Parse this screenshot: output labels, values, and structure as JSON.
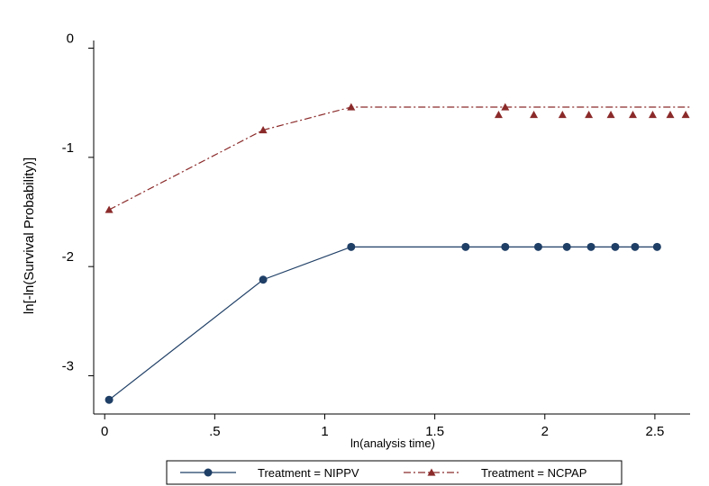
{
  "chart_data": {
    "type": "line",
    "xlabel": "ln(analysis time)",
    "ylabel": "ln[-ln(Survival Probability)]",
    "xlim": [
      -0.05,
      2.66
    ],
    "ylim": [
      -3.35,
      0.07
    ],
    "x_ticks": [
      0,
      0.5,
      1,
      1.5,
      2,
      2.5
    ],
    "x_tick_labels": [
      "0",
      ".5",
      "1",
      "1.5",
      "2",
      "2.5"
    ],
    "y_ticks": [
      0,
      -1,
      -2,
      -3
    ],
    "y_tick_labels": [
      "0",
      "-1",
      "-2",
      "-3"
    ],
    "grid": false,
    "legend_position": "bottom",
    "series": [
      {
        "name": "Treatment = NIPPV",
        "color": "#1f3f66",
        "line_style": "solid",
        "marker": "circle",
        "line": {
          "x": [
            0.02,
            0.72,
            1.12,
            2.51
          ],
          "y": [
            -3.22,
            -2.12,
            -1.82,
            -1.82
          ]
        },
        "markers": {
          "x": [
            0.02,
            0.72,
            1.12,
            1.64,
            1.82,
            1.97,
            2.1,
            2.21,
            2.32,
            2.41,
            2.51
          ],
          "y": [
            -3.22,
            -2.12,
            -1.82,
            -1.82,
            -1.82,
            -1.82,
            -1.82,
            -1.82,
            -1.82,
            -1.82,
            -1.82
          ]
        }
      },
      {
        "name": "Treatment = NCPAP",
        "color": "#8b2a2a",
        "line_style": "dash-dot",
        "marker": "triangle",
        "line": {
          "x": [
            0.02,
            0.72,
            1.12,
            2.66
          ],
          "y": [
            -1.48,
            -0.75,
            -0.54,
            -0.54
          ]
        },
        "markers": {
          "x": [
            0.02,
            0.72,
            1.12,
            1.79,
            1.82,
            1.95,
            2.08,
            2.2,
            2.3,
            2.4,
            2.49,
            2.57,
            2.64
          ],
          "y": [
            -1.48,
            -0.75,
            -0.54,
            -0.61,
            -0.54,
            -0.61,
            -0.61,
            -0.61,
            -0.61,
            -0.61,
            -0.61,
            -0.61,
            -0.61
          ]
        }
      }
    ]
  }
}
